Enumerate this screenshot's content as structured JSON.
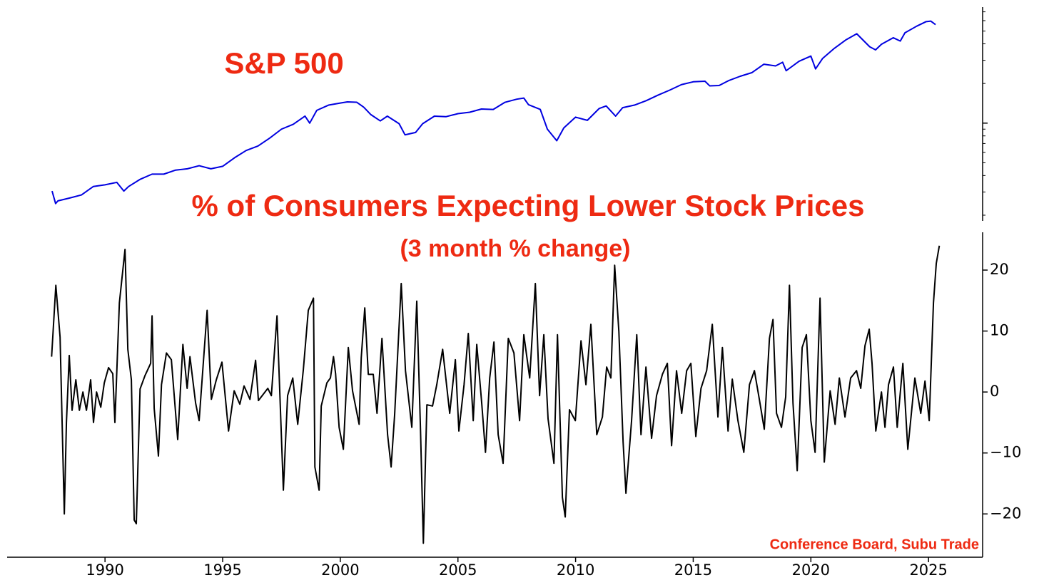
{
  "chart_data": [
    {
      "type": "line",
      "title": "S&P 500",
      "log_scale": true,
      "show_ytick_labels": false,
      "xlim": [
        1985.84,
        2027.3
      ],
      "ylim": [
        181,
        7600
      ],
      "yticks": [
        200,
        300,
        400,
        500,
        600,
        700,
        800,
        900,
        1000,
        2000,
        3000,
        4000,
        5000,
        6000,
        7000
      ],
      "x": [
        1987.75,
        1987.9,
        1988.0,
        1988.5,
        1989.0,
        1989.5,
        1990.0,
        1990.5,
        1990.8,
        1991.0,
        1991.5,
        1992.0,
        1992.5,
        1993.0,
        1993.5,
        1994.0,
        1994.5,
        1995.0,
        1995.5,
        1996.0,
        1996.5,
        1997.0,
        1997.5,
        1998.0,
        1998.5,
        1998.7,
        1999.0,
        1999.5,
        2000.0,
        2000.3,
        2000.7,
        2001.0,
        2001.3,
        2001.7,
        2002.0,
        2002.5,
        2002.75,
        2003.2,
        2003.5,
        2004.0,
        2004.5,
        2005.0,
        2005.5,
        2006.0,
        2006.5,
        2007.0,
        2007.5,
        2007.8,
        2008.0,
        2008.5,
        2008.8,
        2009.2,
        2009.5,
        2010.0,
        2010.5,
        2011.0,
        2011.3,
        2011.7,
        2012.0,
        2012.5,
        2013.0,
        2013.5,
        2014.0,
        2014.5,
        2015.0,
        2015.5,
        2015.7,
        2016.1,
        2016.5,
        2017.0,
        2017.5,
        2018.0,
        2018.5,
        2018.8,
        2018.95,
        2019.5,
        2020.0,
        2020.2,
        2020.5,
        2021.0,
        2021.5,
        2021.95,
        2022.5,
        2022.75,
        2023.0,
        2023.5,
        2023.8,
        2024.0,
        2024.5,
        2024.9,
        2025.1,
        2025.3
      ],
      "series": [
        {
          "color": "#0000e0",
          "values": [
            305,
            245,
            257,
            270,
            285,
            330,
            340,
            355,
            305,
            330,
            375,
            410,
            410,
            440,
            450,
            475,
            450,
            470,
            545,
            620,
            670,
            770,
            900,
            980,
            1130,
            1000,
            1250,
            1370,
            1420,
            1450,
            1440,
            1320,
            1160,
            1040,
            1130,
            990,
            815,
            850,
            990,
            1130,
            1120,
            1180,
            1210,
            1280,
            1270,
            1440,
            1520,
            1550,
            1380,
            1270,
            900,
            735,
            920,
            1110,
            1050,
            1290,
            1350,
            1130,
            1310,
            1370,
            1480,
            1630,
            1780,
            1960,
            2060,
            2080,
            1920,
            1930,
            2100,
            2270,
            2420,
            2800,
            2720,
            2900,
            2500,
            2950,
            3230,
            2580,
            3100,
            3700,
            4300,
            4770,
            3800,
            3600,
            3970,
            4450,
            4200,
            4850,
            5450,
            5900,
            5950,
            5600
          ]
        }
      ]
    },
    {
      "type": "line",
      "title": "% of Consumers Expecting Lower Stock Prices",
      "subtitle": "(3 month % change)",
      "annotation": "Conference Board, Subu Trade",
      "xlim": [
        1985.84,
        2027.3
      ],
      "ylim": [
        -27.1,
        26.2
      ],
      "xticks": [
        1990,
        1995,
        2000,
        2005,
        2010,
        2015,
        2020,
        2025
      ],
      "yticks": [
        {
          "value": -20,
          "label": "−20"
        },
        {
          "value": -10,
          "label": "−10"
        },
        0,
        10,
        20
      ],
      "x": [
        1987.73,
        1987.91,
        1988.09,
        1988.27,
        1988.36,
        1988.48,
        1988.6,
        1988.76,
        1988.91,
        1989.06,
        1989.21,
        1989.39,
        1989.51,
        1989.64,
        1989.82,
        1989.97,
        1990.15,
        1990.33,
        1990.42,
        1990.61,
        1990.85,
        1990.97,
        1991.12,
        1991.24,
        1991.33,
        1991.49,
        1991.7,
        1991.94,
        1992.0,
        1992.09,
        1992.27,
        1992.4,
        1992.61,
        1992.82,
        1993.09,
        1993.31,
        1993.49,
        1993.61,
        1993.85,
        1994.0,
        1994.34,
        1994.52,
        1994.73,
        1994.97,
        1995.25,
        1995.49,
        1995.73,
        1995.91,
        1996.16,
        1996.4,
        1996.52,
        1996.92,
        1997.07,
        1997.31,
        1997.58,
        1997.76,
        1997.98,
        1998.19,
        1998.43,
        1998.64,
        1998.86,
        1998.92,
        1999.1,
        1999.19,
        1999.43,
        1999.58,
        1999.71,
        1999.8,
        1999.95,
        2000.13,
        2000.34,
        2000.52,
        2000.8,
        2000.89,
        2001.04,
        2001.19,
        2001.4,
        2001.56,
        2001.77,
        2002.01,
        2002.16,
        2002.31,
        2002.59,
        2002.77,
        2003.04,
        2003.25,
        2003.41,
        2003.53,
        2003.68,
        2003.92,
        2004.1,
        2004.35,
        2004.65,
        2004.89,
        2005.04,
        2005.26,
        2005.44,
        2005.65,
        2005.8,
        2006.01,
        2006.17,
        2006.35,
        2006.53,
        2006.71,
        2006.92,
        2007.14,
        2007.38,
        2007.62,
        2007.8,
        2008.05,
        2008.29,
        2008.47,
        2008.65,
        2008.83,
        2009.08,
        2009.23,
        2009.44,
        2009.56,
        2009.74,
        2009.99,
        2010.23,
        2010.44,
        2010.65,
        2010.9,
        2011.14,
        2011.32,
        2011.5,
        2011.66,
        2011.84,
        2012.02,
        2012.14,
        2012.38,
        2012.6,
        2012.78,
        2012.99,
        2013.23,
        2013.44,
        2013.69,
        2013.9,
        2014.08,
        2014.29,
        2014.51,
        2014.72,
        2014.9,
        2015.11,
        2015.33,
        2015.57,
        2015.81,
        2016.05,
        2016.24,
        2016.48,
        2016.66,
        2016.9,
        2017.15,
        2017.39,
        2017.6,
        2017.81,
        2018.02,
        2018.24,
        2018.39,
        2018.54,
        2018.75,
        2018.93,
        2019.09,
        2019.24,
        2019.42,
        2019.63,
        2019.81,
        2020.0,
        2020.18,
        2020.39,
        2020.57,
        2020.82,
        2021.03,
        2021.21,
        2021.45,
        2021.69,
        2021.94,
        2022.12,
        2022.3,
        2022.48,
        2022.6,
        2022.76,
        2023.0,
        2023.15,
        2023.3,
        2023.51,
        2023.67,
        2023.91,
        2024.12,
        2024.42,
        2024.67,
        2024.85,
        2025.03,
        2025.21,
        2025.33,
        2025.46
      ],
      "series": [
        {
          "color": "#000000",
          "values": [
            5.8,
            17.5,
            9,
            -20,
            -5,
            6,
            -3,
            2,
            -3,
            0,
            -3,
            2,
            -5,
            0,
            -2.5,
            1.5,
            4,
            3,
            -5,
            14.6,
            23.4,
            7,
            2,
            -21,
            -21.6,
            0.5,
            2.7,
            4.7,
            12.5,
            -2.7,
            -10.5,
            1.2,
            6.4,
            5.3,
            -7.8,
            7.8,
            0.6,
            5.8,
            -1.8,
            -4.7,
            13.4,
            -1.2,
            2,
            4.9,
            -6.4,
            0.2,
            -2,
            1,
            -1.2,
            5.2,
            -1.4,
            0.6,
            -0.6,
            12.5,
            -16.1,
            -0.6,
            2.3,
            -5.3,
            3.7,
            13.4,
            15.4,
            -12.3,
            -16.1,
            -2.3,
            1.5,
            2.3,
            5.8,
            3,
            -5.8,
            -9.4,
            7.3,
            0.2,
            -5.3,
            5.6,
            13.8,
            2.9,
            2.9,
            -3.5,
            8.8,
            -7,
            -12.3,
            -3.7,
            17.8,
            3.5,
            -5.8,
            14.9,
            -6.4,
            -24.8,
            -2.1,
            -2.3,
            1.2,
            7,
            -3.5,
            5.3,
            -6.4,
            1.2,
            9.6,
            -4.7,
            7.8,
            -1.8,
            -9.9,
            2.3,
            8.2,
            -7,
            -11.7,
            8.8,
            6.4,
            -4.7,
            9.4,
            2.3,
            17.8,
            -0.6,
            9.4,
            -4.4,
            -11.7,
            9.4,
            -17.3,
            -20.5,
            -2.9,
            -4.7,
            8.4,
            1.2,
            11.1,
            -7,
            -4.1,
            4.1,
            2.3,
            20.8,
            9.9,
            -8.2,
            -16.6,
            -4.7,
            9.4,
            -7,
            4.1,
            -7.6,
            -0.6,
            2.9,
            4.7,
            -8.8,
            3.5,
            -3.5,
            3.5,
            4.7,
            -7.3,
            0.6,
            3.5,
            11.1,
            -4.1,
            7.3,
            -6.4,
            2.1,
            -4.7,
            -9.9,
            1.2,
            3.5,
            -1.2,
            -6.1,
            8.8,
            11.9,
            -3.5,
            -5.8,
            -0.8,
            17.5,
            -1.8,
            -12.9,
            7.3,
            9.4,
            -4.7,
            -9.9,
            15.4,
            -11.5,
            0.2,
            -5.3,
            2.3,
            -4.1,
            2.3,
            3.5,
            0.6,
            7.6,
            10.3,
            4.7,
            -6.4,
            0,
            -5.8,
            1.2,
            4.1,
            -5.8,
            4.7,
            -9.4,
            2.3,
            -3.5,
            1.8,
            -4.7,
            14.6,
            21.1,
            24
          ]
        }
      ]
    }
  ]
}
